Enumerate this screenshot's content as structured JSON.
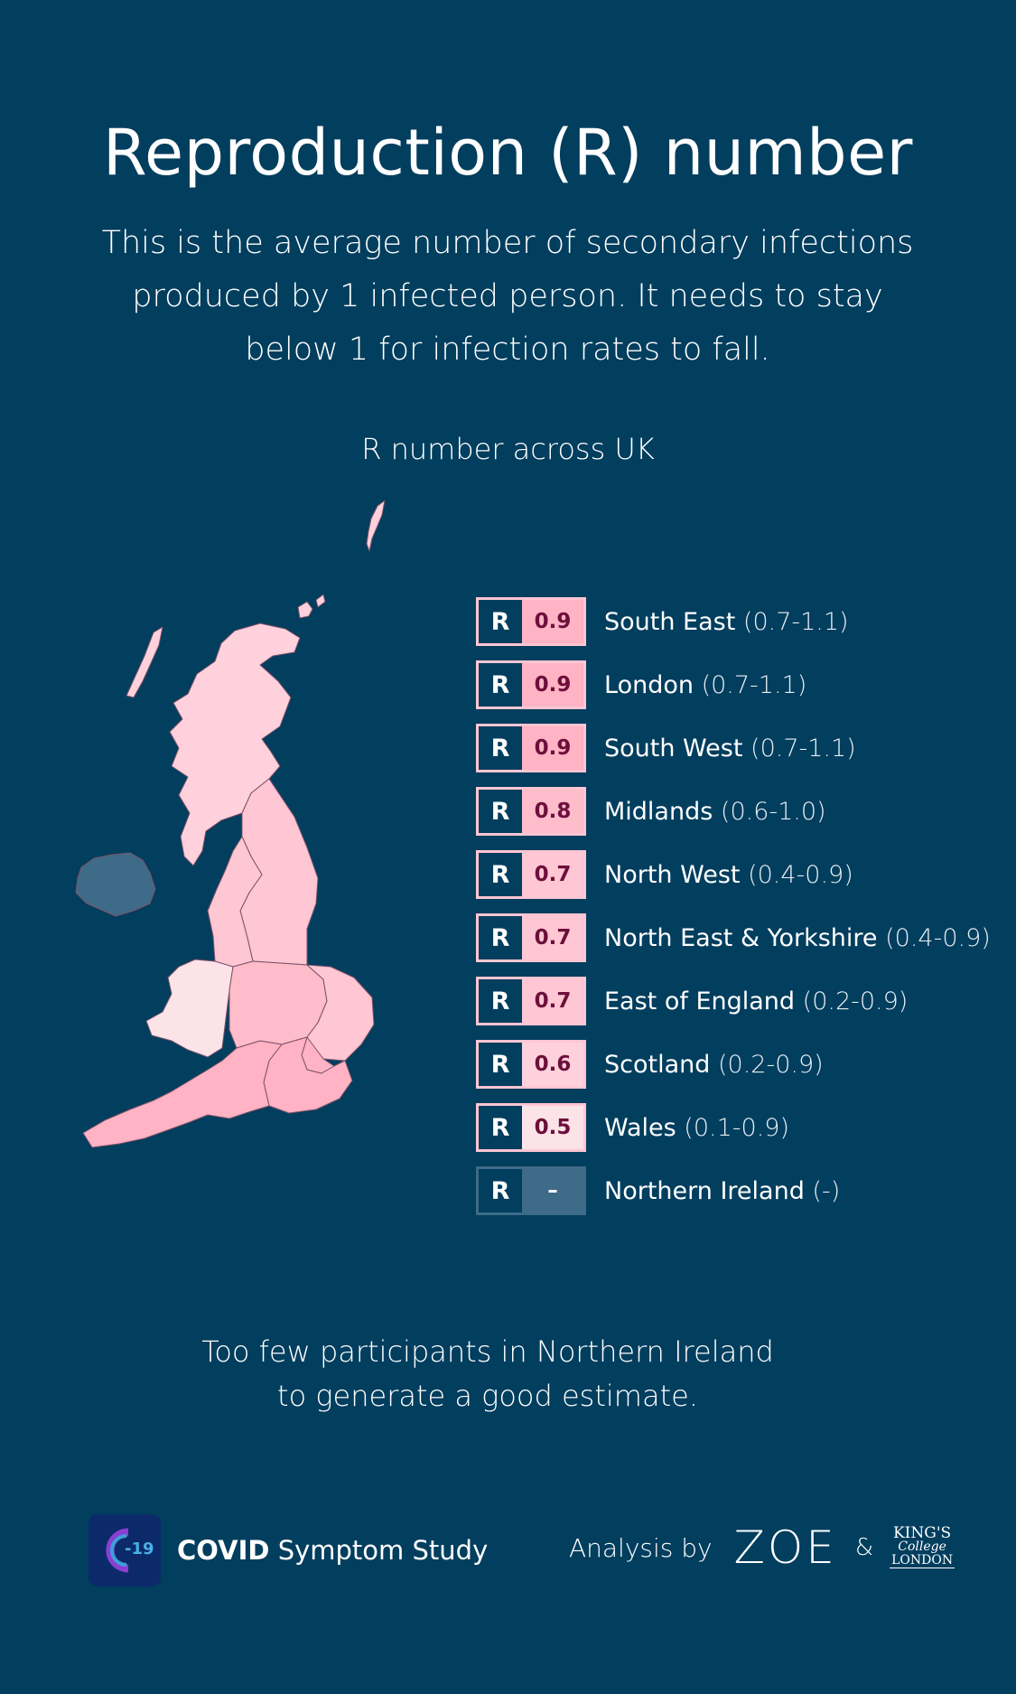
{
  "title": "Reproduction (R) number",
  "intro": "This is the average number of secondary infections produced by 1 infected person. It needs to stay below 1 for infection rates to fall.",
  "map_heading": "R number across UK",
  "badge_letter": "R",
  "regions": [
    {
      "name": "South East",
      "value": "0.9",
      "range": "(0.7-1.1)",
      "color": "#ffb3c4"
    },
    {
      "name": "London",
      "value": "0.9",
      "range": "(0.7-1.1)",
      "color": "#ffb3c4"
    },
    {
      "name": "South West",
      "value": "0.9",
      "range": "(0.7-1.1)",
      "color": "#ffb3c4"
    },
    {
      "name": "Midlands",
      "value": "0.8",
      "range": "(0.6-1.0)",
      "color": "#ffbccb"
    },
    {
      "name": "North West",
      "value": "0.7",
      "range": "(0.4-0.9)",
      "color": "#ffc6d3"
    },
    {
      "name": "North East & Yorkshire",
      "value": "0.7",
      "range": "(0.4-0.9)",
      "color": "#ffc6d3"
    },
    {
      "name": "East of England",
      "value": "0.7",
      "range": "(0.2-0.9)",
      "color": "#ffc6d3"
    },
    {
      "name": "Scotland",
      "value": "0.6",
      "range": "(0.2-0.9)",
      "color": "#ffd1dc"
    },
    {
      "name": "Wales",
      "value": "0.5",
      "range": "(0.1-0.9)",
      "color": "#fbe3e8"
    },
    {
      "name": "Northern Ireland",
      "value": "–",
      "range": "(-)",
      "color": "#3e6b87"
    }
  ],
  "footnote_line1": "Too few participants in Northern Ireland",
  "footnote_line2": "to generate a good estimate.",
  "footer": {
    "app_logo_text": "-19",
    "app_name_bold": "COVID",
    "app_name_rest": "Symptom Study",
    "analysis_label": "Analysis by",
    "zoe": "ZOE",
    "amp": "&",
    "kcl_line1": "KING'S",
    "kcl_line2": "College",
    "kcl_line3": "LONDON"
  },
  "colors": {
    "background": "#023e5e",
    "badge_border": "#ffc6d3",
    "value_text": "#6d0f3c"
  }
}
